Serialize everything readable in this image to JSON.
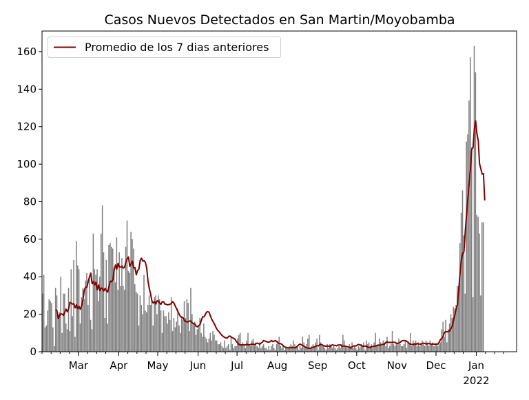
{
  "chart_data": {
    "type": "bar",
    "title": "Casos Nuevos Detectados en San Martin/Moyobamba",
    "xlabel": "",
    "ylabel": "",
    "xlim": [
      "2021-02-01",
      "2022-01-31"
    ],
    "ylim": [
      0,
      171
    ],
    "yticks": [
      0,
      20,
      40,
      60,
      80,
      100,
      120,
      140,
      160
    ],
    "xticks": [
      {
        "date": "2021-03-01",
        "label": "Mar"
      },
      {
        "date": "2021-04-01",
        "label": "Apr"
      },
      {
        "date": "2021-05-01",
        "label": "May"
      },
      {
        "date": "2021-06-01",
        "label": "Jun"
      },
      {
        "date": "2021-07-01",
        "label": "Jul"
      },
      {
        "date": "2021-08-01",
        "label": "Aug"
      },
      {
        "date": "2021-09-01",
        "label": "Sep"
      },
      {
        "date": "2021-10-01",
        "label": "Oct"
      },
      {
        "date": "2021-11-01",
        "label": "Nov"
      },
      {
        "date": "2021-12-01",
        "label": "Dec"
      },
      {
        "date": "2022-01-01",
        "label": "Jan",
        "sublabel": "2022"
      }
    ],
    "grid": false,
    "legend_position": "top-left",
    "bar_color": "#808080",
    "line_color": "#800000",
    "series": [
      {
        "kind": "bar",
        "start_date": "2021-02-01",
        "values": [
          31,
          41,
          13,
          14,
          22,
          28,
          27,
          26,
          13,
          3,
          34,
          30,
          20,
          21,
          40,
          10,
          31,
          31,
          15,
          12,
          34,
          11,
          44,
          19,
          49,
          8,
          59,
          46,
          44,
          15,
          29,
          34,
          28,
          38,
          42,
          25,
          40,
          17,
          12,
          63,
          44,
          41,
          44,
          27,
          40,
          63,
          78,
          53,
          18,
          49,
          15,
          57,
          58,
          56,
          55,
          45,
          37,
          61,
          33,
          53,
          35,
          50,
          35,
          33,
          56,
          70,
          43,
          42,
          64,
          60,
          55,
          36,
          32,
          31,
          14,
          30,
          25,
          20,
          41,
          22,
          21,
          25,
          30,
          25,
          27,
          14,
          29,
          30,
          20,
          30,
          28,
          22,
          10,
          22,
          19,
          19,
          15,
          21,
          17,
          29,
          11,
          18,
          13,
          16,
          23,
          14,
          10,
          19,
          17,
          27,
          18,
          28,
          26,
          11,
          34,
          20,
          15,
          16,
          9,
          12,
          14,
          18,
          10,
          8,
          15,
          8,
          7,
          5,
          7,
          10,
          6,
          11,
          9,
          6,
          6,
          4,
          4,
          5,
          3,
          2,
          6,
          2,
          3,
          4,
          1,
          8,
          4,
          2,
          3,
          3,
          7,
          9,
          10,
          4,
          5,
          4,
          2,
          6,
          10,
          4,
          3,
          6,
          7,
          3,
          5,
          3,
          2,
          5,
          2,
          3,
          4,
          2,
          2,
          1,
          3,
          1,
          3,
          4,
          2,
          1,
          4,
          6,
          8,
          3,
          2,
          3,
          1,
          2,
          2,
          2,
          3,
          4,
          3,
          6,
          4,
          3,
          3,
          1,
          3,
          2,
          8,
          5,
          3,
          4,
          7,
          9,
          2,
          3,
          4,
          3,
          5,
          7,
          1,
          9,
          5,
          4,
          3,
          2,
          1,
          4,
          2,
          4,
          3,
          2,
          3,
          2,
          1,
          2,
          3,
          2,
          4,
          9,
          6,
          3,
          2,
          2,
          4,
          3,
          5,
          2,
          3,
          2,
          1,
          3,
          2,
          4,
          3,
          5,
          1,
          6,
          4,
          5,
          3,
          4,
          2,
          5,
          10,
          3,
          4,
          7,
          5,
          3,
          6,
          5,
          3,
          8,
          2,
          3,
          4,
          11,
          4,
          3,
          5,
          4,
          7,
          4,
          3,
          3,
          4,
          6,
          2,
          5,
          4,
          10,
          3,
          6,
          4,
          6,
          3,
          5,
          3,
          4,
          6,
          4,
          3,
          6,
          5,
          3,
          6,
          4,
          5,
          3,
          4,
          4,
          3,
          4,
          5,
          12,
          16,
          8,
          17,
          5,
          12,
          15,
          20,
          18,
          24,
          23,
          25,
          35,
          35,
          58,
          74,
          86,
          62,
          31,
          112,
          116,
          134,
          157,
          109,
          29,
          163,
          149,
          73,
          72,
          63,
          30,
          69,
          69
        ]
      },
      {
        "kind": "line",
        "name": "Promedio de los 7 dias anteriores",
        "start_date": "2021-02-11",
        "values": [
          22.4,
          21.7,
          17.6,
          19.4,
          20.3,
          20.0,
          19.4,
          21.0,
          22.7,
          21.3,
          23.0,
          26.3,
          25.9,
          25.4,
          25.6,
          23.4,
          25.0,
          23.0,
          24.1,
          22.7,
          24.7,
          27.9,
          32.9,
          34.4,
          34.3,
          37.3,
          39.9,
          41.9,
          36.3,
          37.4,
          35.6,
          37.1,
          33.0,
          35.6,
          32.6,
          34.0,
          33.7,
          32.4,
          33.7,
          32.6,
          31.8,
          34.8,
          37.6,
          37.3,
          38.3,
          43.6,
          46.3,
          44.0,
          47.1,
          45.1,
          45.1,
          45.6,
          44.6,
          45.0,
          47.9,
          49.6,
          50.5,
          45.6,
          46.9,
          48.3,
          44.7,
          44.9,
          41.0,
          43.3,
          44.0,
          48.7,
          49.9,
          48.3,
          48.6,
          47.6,
          44.7,
          37.7,
          33.7,
          30.9,
          27.1,
          26.0,
          26.7,
          25.4,
          27.1,
          27.1,
          26.0,
          25.3,
          26.7,
          26.6,
          25.4,
          25.3,
          25.0,
          25.1,
          25.4,
          25.7,
          26.7,
          25.9,
          24.3,
          22.9,
          21.4,
          20.0,
          18.7,
          18.4,
          18.1,
          16.7,
          16.1,
          15.9,
          16.0,
          16.4,
          16.4,
          15.4,
          15.0,
          14.9,
          13.6,
          13.3,
          14.0,
          14.4,
          16.7,
          18.6,
          18.6,
          19.7,
          21.1,
          21.4,
          21.0,
          19.1,
          17.4,
          16.1,
          14.9,
          13.4,
          12.0,
          11.1,
          10.4,
          9.4,
          8.6,
          8.1,
          7.6,
          7.4,
          7.3,
          8.1,
          8.4,
          7.9,
          7.4,
          7.1,
          6.6,
          5.4,
          4.6,
          3.9,
          3.6,
          3.7,
          3.6,
          3.7,
          3.6,
          4.0,
          3.7,
          3.7,
          3.9,
          4.0,
          4.1,
          3.7,
          4.3,
          4.6,
          4.3,
          4.0,
          4.6,
          5.1,
          6.0,
          5.7,
          5.4,
          5.1,
          5.1,
          5.4,
          6.0,
          5.4,
          5.6,
          6.0,
          5.4,
          4.7,
          4.3,
          4.3,
          3.9,
          3.3,
          2.6,
          2.4,
          2.1,
          2.1,
          2.1,
          2.1,
          2.3,
          2.1,
          2.1,
          2.3,
          3.0,
          3.7,
          4.1,
          3.7,
          3.3,
          2.9,
          2.4,
          2.0,
          2.0,
          1.7,
          1.9,
          2.1,
          2.4,
          2.6,
          2.9,
          3.3,
          3.1,
          3.7,
          3.9,
          3.6,
          3.3,
          3.0,
          2.9,
          3.1,
          3.0,
          2.7,
          3.4,
          3.7,
          3.4,
          3.4,
          3.1,
          3.6,
          3.6,
          3.7,
          3.0,
          3.0,
          3.1,
          2.9,
          2.7,
          2.6,
          2.3,
          1.9,
          2.6,
          3.1,
          3.1,
          3.1,
          3.6,
          3.9,
          3.6,
          3.6,
          2.9,
          3.0,
          3.0,
          2.9,
          2.4,
          2.3,
          2.3,
          2.7,
          2.7,
          3.0,
          3.0,
          3.4,
          3.4,
          3.6,
          3.4,
          3.9,
          3.9,
          4.1,
          5.0,
          5.3,
          4.9,
          5.0,
          4.9,
          5.1,
          5.0,
          5.0,
          4.6,
          4.4,
          4.6,
          5.0,
          5.7,
          5.9,
          6.0,
          5.9,
          5.6,
          5.1,
          4.3,
          4.0,
          3.9,
          3.7,
          4.3,
          3.9,
          4.4,
          4.1,
          4.1,
          4.1,
          4.4,
          4.6,
          4.4,
          4.1,
          4.3,
          4.3,
          4.3,
          4.0,
          4.1,
          4.1,
          4.0,
          4.1,
          4.1,
          5.1,
          6.6,
          7.1,
          8.3,
          10.3,
          10.7,
          10.6,
          10.8,
          11.1,
          12.4,
          13.6,
          17.1,
          19.6,
          22.7,
          25.1,
          33.0,
          41.8,
          48.7,
          52.4,
          53.3,
          64.1,
          73.1,
          81.9,
          89.9,
          97.3,
          107.9,
          108.9,
          118.7,
          123.1,
          116.1,
          112.6,
          100.2,
          97.5,
          94.7,
          94.9,
          80.7
        ]
      }
    ]
  }
}
